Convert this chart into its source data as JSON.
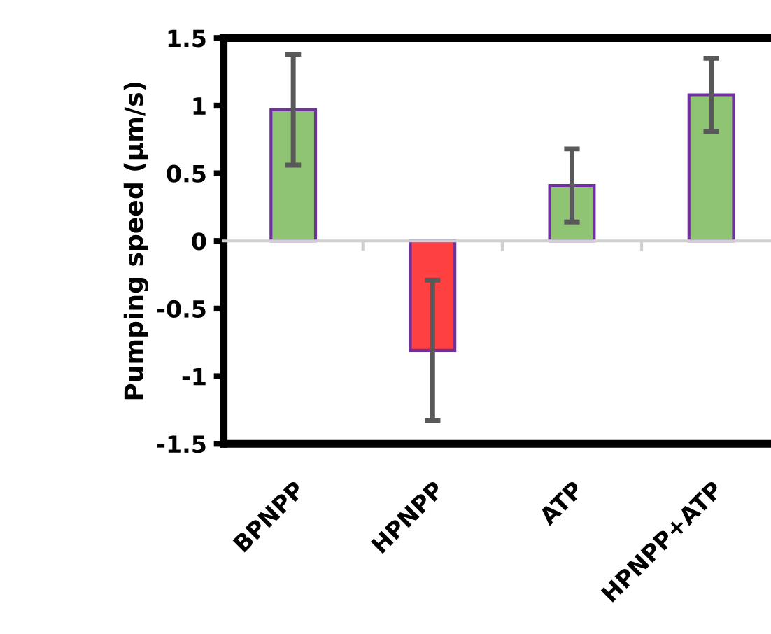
{
  "chart_data": {
    "type": "bar",
    "ylabel": "Pumping speed (µm/s)",
    "categories": [
      "BPNPP",
      "HPNPP",
      "ATP",
      "HPNPP+ATP"
    ],
    "values": [
      0.97,
      -0.81,
      0.41,
      1.08
    ],
    "errors": [
      0.41,
      0.52,
      0.27,
      0.27
    ],
    "colors": [
      "#8fc472",
      "#ff4040",
      "#8fc472",
      "#8fc472"
    ],
    "ylim": [
      -1.5,
      1.5
    ],
    "yticks": [
      -1.5,
      -1,
      -0.5,
      0,
      0.5,
      1,
      1.5
    ]
  }
}
